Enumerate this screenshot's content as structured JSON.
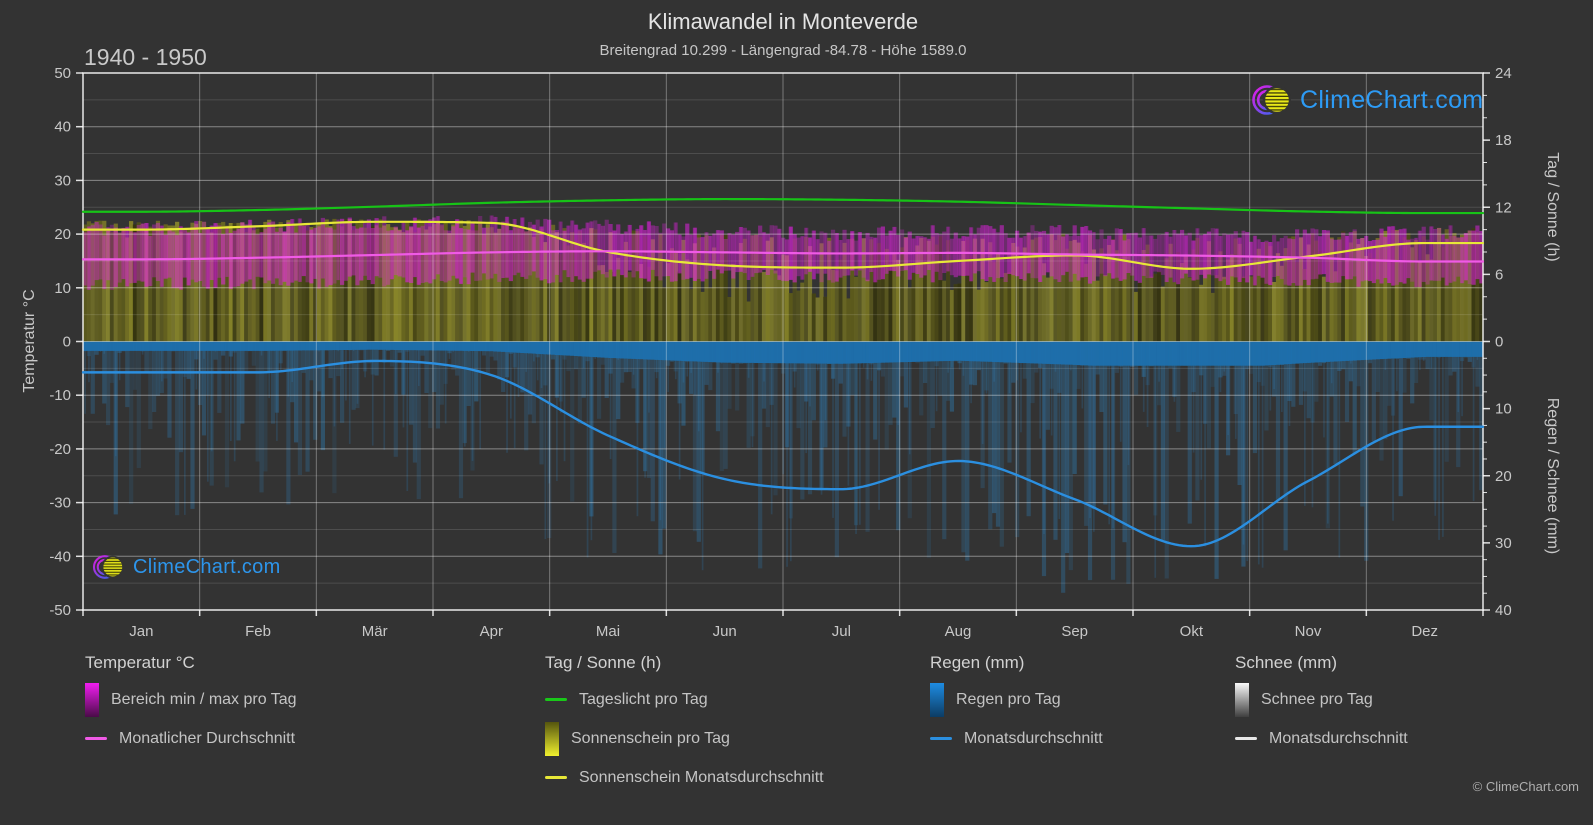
{
  "page": {
    "title": "Klimawandel in Monteverde",
    "subtitle": "Breitengrad 10.299 - Längengrad -84.78 - Höhe 1589.0",
    "period": "1940 - 1950",
    "brand": "ClimeChart.com",
    "copyright": "© ClimeChart.com"
  },
  "colors": {
    "background": "#333333",
    "text": "#c8c8c8",
    "grid_major": "rgba(255,255,255,0.42)",
    "grid_minor": "rgba(255,255,255,0.13)",
    "grid_month": "rgba(255,255,255,0.34)",
    "frame": "rgba(255,255,255,0.85)",
    "daylight_line": "#17c317",
    "sunshine_line": "#e8e838",
    "temp_line": "#f05ae6",
    "rain_line": "#2b8fe0",
    "sun_fill_hue": 58,
    "temp_fill": "#e620e6",
    "rain_fill": "#2e85c3",
    "rain_cap_fill": "#1d6fad",
    "brand_blue": "#2d9bf5"
  },
  "legend": {
    "groups": [
      {
        "title": "Temperatur °C",
        "items": [
          {
            "swatch": "gradient-magenta",
            "label": "Bereich min / max pro Tag"
          },
          {
            "swatch": "line-pink",
            "label": "Monatlicher Durchschnitt"
          }
        ]
      },
      {
        "title": "Tag / Sonne (h)",
        "items": [
          {
            "swatch": "line-green",
            "label": "Tageslicht pro Tag"
          },
          {
            "swatch": "gradient-yellow",
            "label": "Sonnenschein pro Tag"
          },
          {
            "swatch": "line-yellow",
            "label": "Sonnenschein Monatsdurchschnitt"
          }
        ]
      },
      {
        "title": "Regen (mm)",
        "items": [
          {
            "swatch": "gradient-blue",
            "label": "Regen pro Tag"
          },
          {
            "swatch": "line-blue",
            "label": "Monatsdurchschnitt"
          }
        ]
      },
      {
        "title": "Schnee (mm)",
        "items": [
          {
            "swatch": "gradient-white",
            "label": "Schnee pro Tag"
          },
          {
            "swatch": "line-white",
            "label": "Monatsdurchschnitt"
          }
        ]
      }
    ]
  },
  "chart_data": {
    "type": "climate-composite",
    "title": "Klimawandel in Monteverde",
    "subtitle": "Breitengrad 10.299 - Längengrad -84.78 - Höhe 1589.0",
    "period": "1940 - 1950",
    "location": {
      "latitude": 10.299,
      "longitude": -84.78,
      "elevation_m": 1589.0
    },
    "months": [
      "Jan",
      "Feb",
      "Mär",
      "Apr",
      "Mai",
      "Jun",
      "Jul",
      "Aug",
      "Sep",
      "Okt",
      "Nov",
      "Dez"
    ],
    "axes": {
      "temperature_c": {
        "label": "Temperatur °C",
        "min": -50,
        "max": 50,
        "major_ticks": [
          50,
          40,
          30,
          20,
          10,
          0,
          -10,
          -20,
          -30,
          -40,
          -50
        ],
        "minor_step": 5
      },
      "day_sun_h": {
        "label": "Tag / Sonne (h)",
        "min": 0,
        "max": 24,
        "major_ticks": [
          24,
          18,
          12,
          6,
          0
        ],
        "minor_step": 2
      },
      "rain_snow_mm": {
        "label": "Regen / Schnee (mm)",
        "min": 0,
        "max": 40,
        "major_ticks": [
          10,
          20,
          30,
          40
        ],
        "minor_step": 2.5,
        "direction": "down"
      }
    },
    "series": {
      "daylight_h": {
        "name": "Tageslicht pro Tag",
        "values": [
          11.6,
          11.75,
          12.05,
          12.4,
          12.62,
          12.73,
          12.67,
          12.5,
          12.2,
          11.9,
          11.62,
          11.48
        ]
      },
      "sunshine_avg_h": {
        "name": "Sonnenschein Monatsdurchschnitt",
        "values": [
          10.0,
          10.3,
          10.7,
          10.6,
          8.0,
          6.8,
          6.6,
          7.2,
          7.7,
          6.5,
          7.6,
          8.8
        ]
      },
      "sunshine_day_max_h": {
        "name": "Sonnenschein pro Tag (Obergrenze)",
        "values": [
          10.8,
          10.9,
          11.0,
          10.8,
          10.1,
          9.7,
          9.5,
          9.7,
          9.7,
          9.4,
          9.7,
          10.2
        ]
      },
      "temp_avg_c": {
        "name": "Monatlicher Durchschnitt",
        "values": [
          15.3,
          15.6,
          16.1,
          16.6,
          16.8,
          16.6,
          16.4,
          16.5,
          16.2,
          16.0,
          15.6,
          14.9
        ]
      },
      "temp_day_min_c": {
        "name": "Bereich min pro Tag",
        "values": [
          10.8,
          10.9,
          11.2,
          11.8,
          12.3,
          12.3,
          12.1,
          12.2,
          12.0,
          11.8,
          11.4,
          11.0
        ]
      },
      "temp_day_max_c": {
        "name": "Bereich max pro Tag",
        "values": [
          20.9,
          21.3,
          21.9,
          22.1,
          21.3,
          20.4,
          20.1,
          20.4,
          20.3,
          19.9,
          19.8,
          20.3
        ]
      },
      "rain_avg_mm": {
        "name": "Monatsdurchschnitt",
        "values": [
          4.6,
          4.6,
          2.9,
          5.0,
          14.0,
          20.5,
          22.0,
          17.8,
          23.5,
          30.5,
          20.8,
          12.7
        ]
      },
      "rain_day_max_mm": {
        "name": "Regen pro Tag (Spitzen)",
        "values": [
          27,
          26,
          24,
          26,
          34,
          36,
          36,
          34,
          38,
          39,
          36,
          30
        ]
      },
      "snow_avg_mm": {
        "name": "Monatsdurchschnitt",
        "values": [
          0,
          0,
          0,
          0,
          0,
          0,
          0,
          0,
          0,
          0,
          0,
          0
        ]
      }
    }
  }
}
